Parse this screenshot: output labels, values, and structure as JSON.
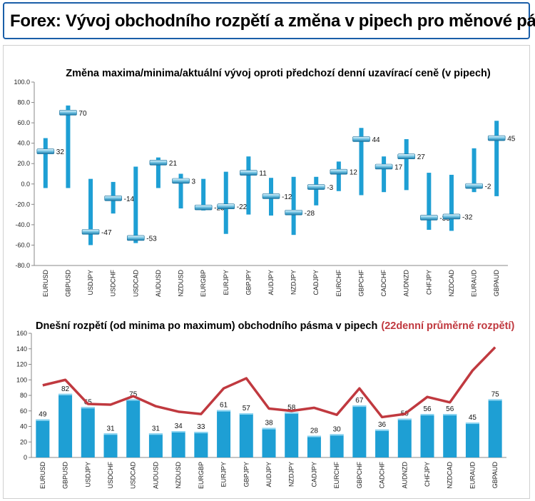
{
  "header": {
    "title": "Forex: Vývoj obchodního rozpětí a změna v pipech pro měnové páry"
  },
  "colors": {
    "bar": "#1e9fd4",
    "line": "#c0393f",
    "axis": "#888888",
    "title_accent": "#c0393f",
    "header_border": "#1a5ea8"
  },
  "chart_data": [
    {
      "type": "bar",
      "title": "Změna maxima/minima/aktuální vývoj oproti předchozí denní uzavírací ceně (v pipech)",
      "categories": [
        "EURUSD",
        "GBPUSD",
        "USDJPY",
        "USDCHF",
        "USDCAD",
        "AUDUSD",
        "NZDUSD",
        "EURGBP",
        "EURJPY",
        "GBPJPY",
        "AUDJPY",
        "NZDJPY",
        "CADJPY",
        "EURCHF",
        "GBPCHF",
        "CADCHF",
        "AUDNZD",
        "CHFJPY",
        "NZDCAD",
        "EURAUD",
        "GBPAUD"
      ],
      "high": [
        45,
        77,
        5,
        2,
        17,
        26,
        10,
        5,
        12,
        27,
        6,
        7,
        7,
        22,
        55,
        27,
        44,
        11,
        9,
        35,
        62
      ],
      "low": [
        -4,
        -4,
        -60,
        -29,
        -58,
        -4,
        -24,
        -26,
        -49,
        -30,
        -31,
        -50,
        -21,
        -7,
        -11,
        -8,
        -6,
        -45,
        -46,
        -8,
        -12
      ],
      "current": [
        32,
        70,
        -47,
        -14,
        -53,
        21,
        3,
        -23,
        -22,
        11,
        -12,
        -28,
        -3,
        12,
        44,
        17,
        27,
        -33,
        -32,
        -2,
        45
      ],
      "data_labels": [
        "32",
        "70",
        "-47",
        "-14",
        "-53",
        "21",
        "3",
        "-23",
        "-22",
        "11",
        "-12",
        "-28",
        "-3",
        "12",
        "44",
        "17",
        "27",
        "-33",
        "-32",
        "-2",
        "45"
      ],
      "ylim": [
        -80,
        100
      ],
      "yticks": [
        "100.0",
        "80.0",
        "60.0",
        "40.0",
        "20.0",
        "0.0",
        "-20.0",
        "-40.0",
        "-60.0",
        "-80.0"
      ],
      "ytick_values": [
        100,
        80,
        60,
        40,
        20,
        0,
        -20,
        -40,
        -60,
        -80
      ],
      "grid": false
    },
    {
      "type": "bar",
      "title": "Dnešní rozpětí (od minima po maximum) obchodního pásma v pipech",
      "title_accent": "(22denní průměrné rozpětí)",
      "categories": [
        "EURUSD",
        "GBPUSD",
        "USDJPY",
        "USDCHF",
        "USDCAD",
        "AUDUSD",
        "NZDUSD",
        "EURGBP",
        "EURJPY",
        "GBPJPY",
        "AUDJPY",
        "NZDJPY",
        "CADJPY",
        "EURCHF",
        "GBPCHF",
        "CADCHF",
        "AUDNZD",
        "CHFJPY",
        "NZDCAD",
        "EURAUD",
        "GBPAUD"
      ],
      "series": [
        {
          "values": [
            49,
            82,
            65,
            31,
            75,
            31,
            34,
            33,
            61,
            57,
            38,
            58,
            28,
            30,
            67,
            36,
            50,
            56,
            56,
            45,
            75
          ]
        },
        {
          "values": [
            93,
            100,
            69,
            68,
            79,
            66,
            59,
            56,
            89,
            102,
            63,
            60,
            64,
            55,
            89,
            52,
            56,
            78,
            71,
            112,
            142
          ]
        }
      ],
      "data_labels": [
        "49",
        "82",
        "65",
        "31",
        "75",
        "31",
        "34",
        "33",
        "61",
        "57",
        "38",
        "58",
        "28",
        "30",
        "67",
        "36",
        "50",
        "56",
        "56",
        "45",
        "75"
      ],
      "ylim": [
        0,
        160
      ],
      "yticks": [
        "160",
        "140",
        "120",
        "100",
        "80",
        "60",
        "40",
        "20",
        "0"
      ],
      "ytick_values": [
        160,
        140,
        120,
        100,
        80,
        60,
        40,
        20,
        0
      ],
      "grid": false
    }
  ]
}
